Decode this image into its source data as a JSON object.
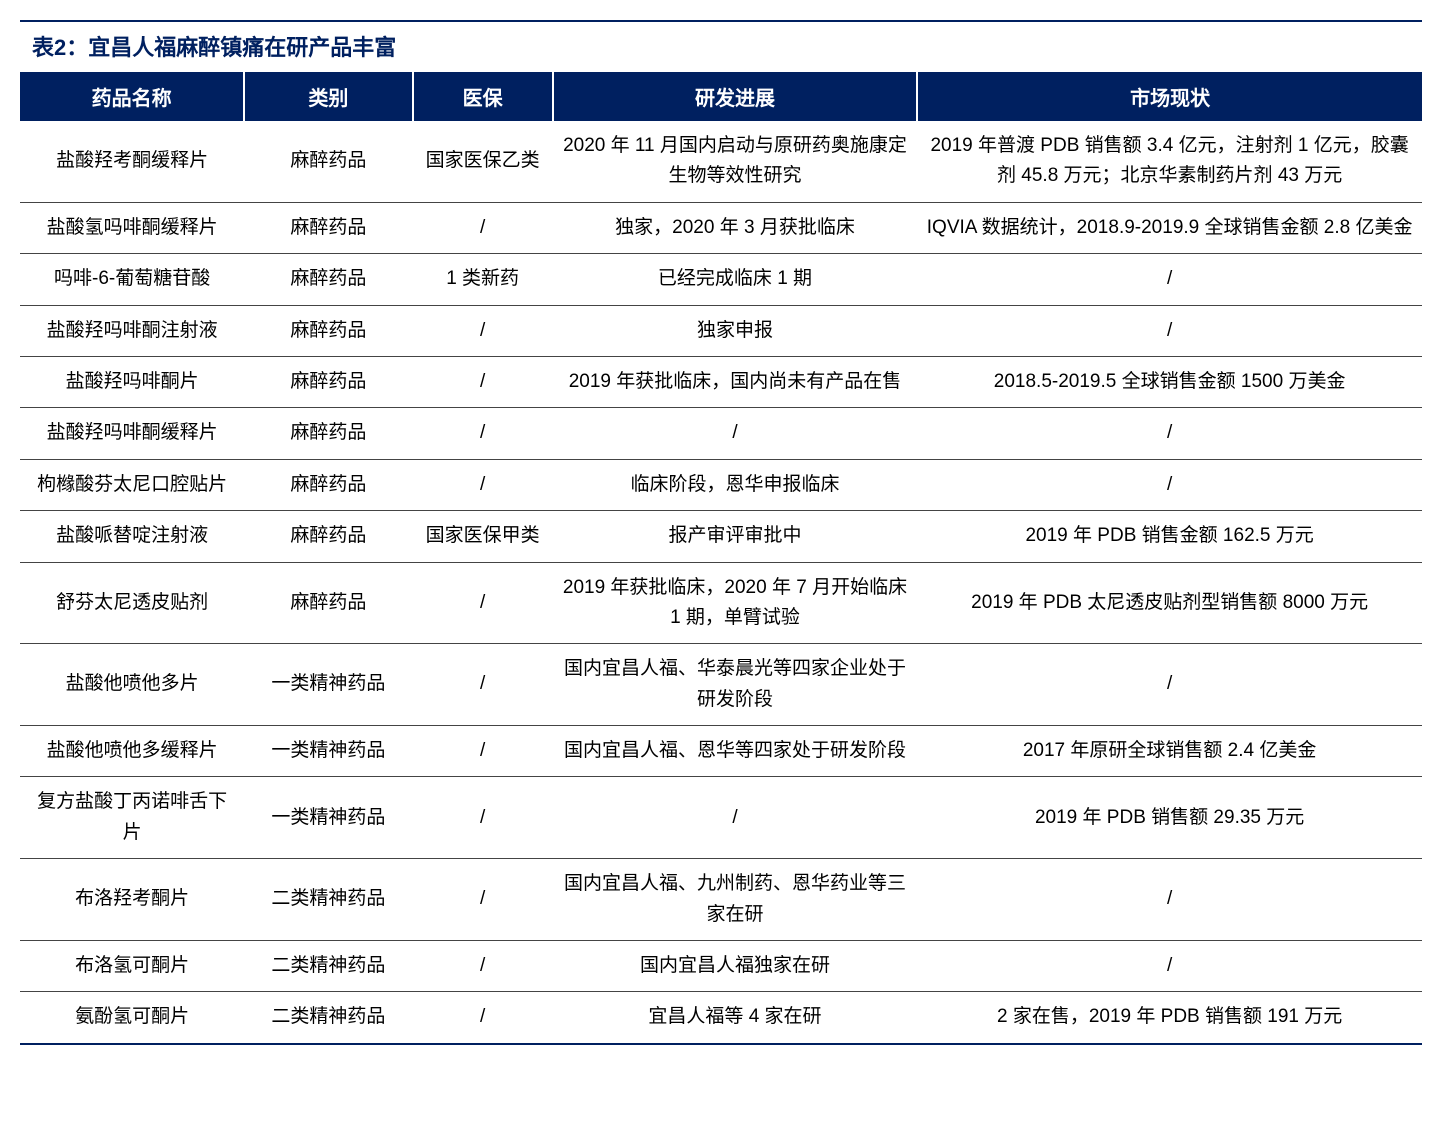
{
  "table": {
    "type": "table",
    "title": "表2：宜昌人福麻醉镇痛在研产品丰富",
    "header_bg": "#002060",
    "header_fg": "#ffffff",
    "title_color": "#002060",
    "border_color": "#444444",
    "title_fontsize": 22,
    "header_fontsize": 20,
    "cell_fontsize": 19,
    "columns": [
      {
        "key": "name",
        "label": "药品名称",
        "width": "16%"
      },
      {
        "key": "category",
        "label": "类别",
        "width": "12%"
      },
      {
        "key": "insurance",
        "label": "医保",
        "width": "10%"
      },
      {
        "key": "progress",
        "label": "研发进展",
        "width": "26%"
      },
      {
        "key": "market",
        "label": "市场现状",
        "width": "36%"
      }
    ],
    "rows": [
      {
        "name": "盐酸羟考酮缓释片",
        "category": "麻醉药品",
        "insurance": "国家医保乙类",
        "progress": "2020 年 11 月国内启动与原研药奥施康定生物等效性研究",
        "market": "2019 年普渡 PDB 销售额 3.4 亿元，注射剂 1 亿元，胶囊剂 45.8 万元；北京华素制药片剂 43 万元"
      },
      {
        "name": "盐酸氢吗啡酮缓释片",
        "category": "麻醉药品",
        "insurance": "/",
        "progress": "独家，2020 年 3 月获批临床",
        "market": "IQVIA 数据统计，2018.9-2019.9 全球销售金额 2.8 亿美金"
      },
      {
        "name": "吗啡-6-葡萄糖苷酸",
        "category": "麻醉药品",
        "insurance": "1 类新药",
        "progress": "已经完成临床 1 期",
        "market": "/"
      },
      {
        "name": "盐酸羟吗啡酮注射液",
        "category": "麻醉药品",
        "insurance": "/",
        "progress": "独家申报",
        "market": "/"
      },
      {
        "name": "盐酸羟吗啡酮片",
        "category": "麻醉药品",
        "insurance": "/",
        "progress": "2019 年获批临床，国内尚未有产品在售",
        "market": "2018.5-2019.5 全球销售金额 1500 万美金"
      },
      {
        "name": "盐酸羟吗啡酮缓释片",
        "category": "麻醉药品",
        "insurance": "/",
        "progress": "/",
        "market": "/"
      },
      {
        "name": "枸橼酸芬太尼口腔贴片",
        "category": "麻醉药品",
        "insurance": "/",
        "progress": "临床阶段，恩华申报临床",
        "market": "/"
      },
      {
        "name": "盐酸哌替啶注射液",
        "category": "麻醉药品",
        "insurance": "国家医保甲类",
        "progress": "报产审评审批中",
        "market": "2019 年 PDB 销售金额 162.5 万元"
      },
      {
        "name": "舒芬太尼透皮贴剂",
        "category": "麻醉药品",
        "insurance": "/",
        "progress": "2019 年获批临床，2020 年 7 月开始临床 1 期，单臂试验",
        "market": "2019 年 PDB 太尼透皮贴剂型销售额 8000 万元"
      },
      {
        "name": "盐酸他喷他多片",
        "category": "一类精神药品",
        "insurance": "/",
        "progress": "国内宜昌人福、华泰晨光等四家企业处于研发阶段",
        "market": "/"
      },
      {
        "name": "盐酸他喷他多缓释片",
        "category": "一类精神药品",
        "insurance": "/",
        "progress": "国内宜昌人福、恩华等四家处于研发阶段",
        "market": "2017 年原研全球销售额 2.4 亿美金"
      },
      {
        "name": "复方盐酸丁丙诺啡舌下片",
        "category": "一类精神药品",
        "insurance": "/",
        "progress": "/",
        "market": "2019 年 PDB 销售额 29.35 万元"
      },
      {
        "name": "布洛羟考酮片",
        "category": "二类精神药品",
        "insurance": "/",
        "progress": "国内宜昌人福、九州制药、恩华药业等三家在研",
        "market": "/"
      },
      {
        "name": "布洛氢可酮片",
        "category": "二类精神药品",
        "insurance": "/",
        "progress": "国内宜昌人福独家在研",
        "market": "/"
      },
      {
        "name": "氨酚氢可酮片",
        "category": "二类精神药品",
        "insurance": "/",
        "progress": "宜昌人福等 4 家在研",
        "market": "2 家在售，2019 年 PDB 销售额 191 万元"
      }
    ]
  }
}
